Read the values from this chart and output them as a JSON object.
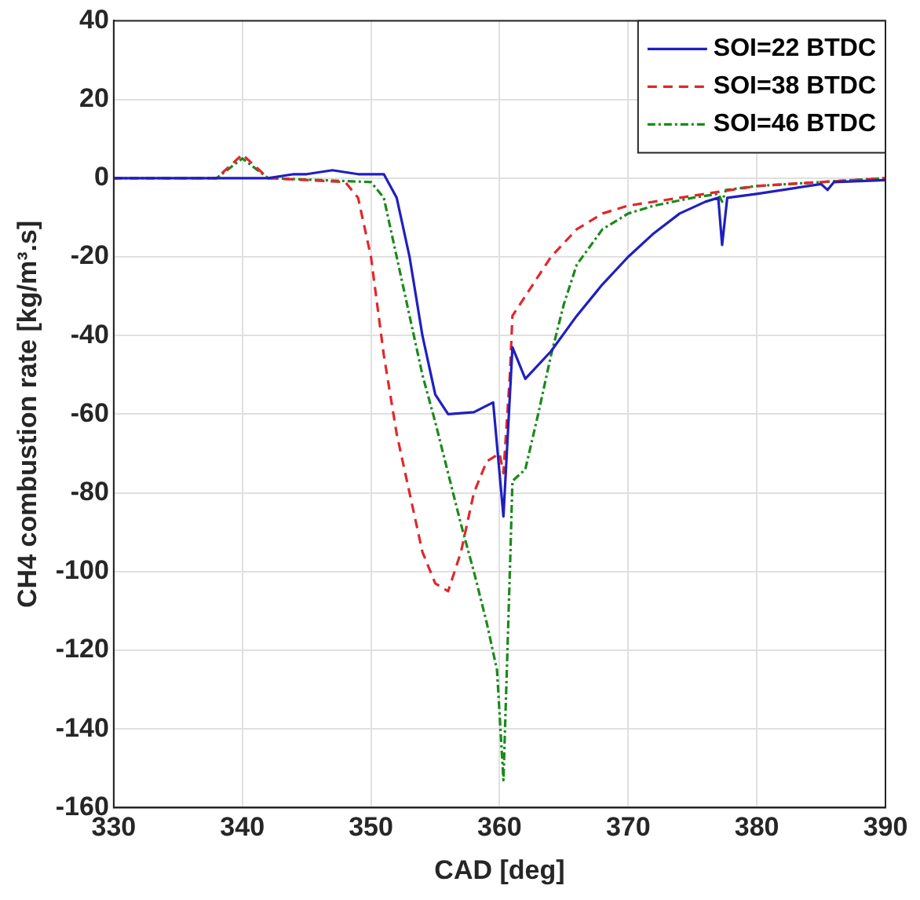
{
  "chart_data": {
    "type": "line",
    "xlabel": "CAD [deg]",
    "ylabel": "CH4 combustion rate [kg/m³.s]",
    "xlim": [
      330,
      390
    ],
    "xticks": [
      330,
      340,
      350,
      360,
      370,
      380,
      390
    ],
    "ylim": [
      -160,
      40
    ],
    "yticks": [
      -160,
      -140,
      -120,
      -100,
      -80,
      -60,
      -40,
      -20,
      0,
      20,
      40
    ],
    "grid": true,
    "legend": "top right",
    "marker": "none",
    "series": [
      {
        "name": "SOI=22 BTDC",
        "color": "#1f1fc0",
        "line_style": "solid",
        "x": [
          330,
          342,
          344,
          345,
          347,
          349,
          351,
          352,
          353,
          354,
          355,
          356,
          358,
          359.5,
          360.3,
          361,
          362,
          364,
          366,
          368,
          370,
          372,
          374,
          376,
          377,
          377.3,
          377.7,
          380,
          383,
          385,
          385.5,
          386,
          390
        ],
        "values": [
          0,
          0,
          1,
          1,
          2,
          1,
          1,
          -5,
          -20,
          -40,
          -55,
          -60,
          -59.5,
          -57,
          -86,
          -43,
          -51,
          -44,
          -35,
          -27,
          -20,
          -14,
          -9,
          -6,
          -5,
          -17,
          -5,
          -4,
          -2.5,
          -1.5,
          -3,
          -1,
          -0.5
        ]
      },
      {
        "name": "SOI=38 BTDC",
        "color": "#e0282c",
        "line_style": "dashed",
        "x": [
          330,
          338,
          339,
          340,
          341,
          342,
          348,
          349,
          350,
          351,
          352,
          353,
          354,
          355,
          356,
          357,
          358,
          359,
          360,
          360.3,
          360.8,
          361,
          362,
          364,
          366,
          368,
          370,
          374,
          378,
          380,
          385,
          390
        ],
        "values": [
          0,
          0,
          3,
          6,
          3,
          0,
          -1,
          -5,
          -20,
          -45,
          -65,
          -80,
          -95,
          -103,
          -105,
          -95,
          -80,
          -72,
          -70,
          -75,
          -50,
          -35,
          -30,
          -20,
          -13,
          -9,
          -7,
          -5,
          -3,
          -2,
          -1,
          0
        ]
      },
      {
        "name": "SOI=46 BTDC",
        "color": "#1a8a1a",
        "line_style": "dotted",
        "x": [
          330,
          338,
          340,
          342,
          350,
          351,
          352,
          353,
          354,
          355,
          356,
          357,
          358,
          359,
          359.8,
          360.3,
          360.8,
          361,
          362,
          363,
          364,
          365,
          366,
          368,
          370,
          372,
          375,
          377,
          377.3,
          377.6,
          380,
          385,
          390
        ],
        "values": [
          0,
          0,
          5,
          0,
          -1,
          -5,
          -20,
          -35,
          -50,
          -62,
          -75,
          -88,
          -100,
          -113,
          -125,
          -153,
          -100,
          -77,
          -74,
          -60,
          -45,
          -32,
          -22,
          -13,
          -9,
          -7,
          -5,
          -4,
          -6,
          -3,
          -2,
          -1,
          0
        ]
      }
    ]
  }
}
